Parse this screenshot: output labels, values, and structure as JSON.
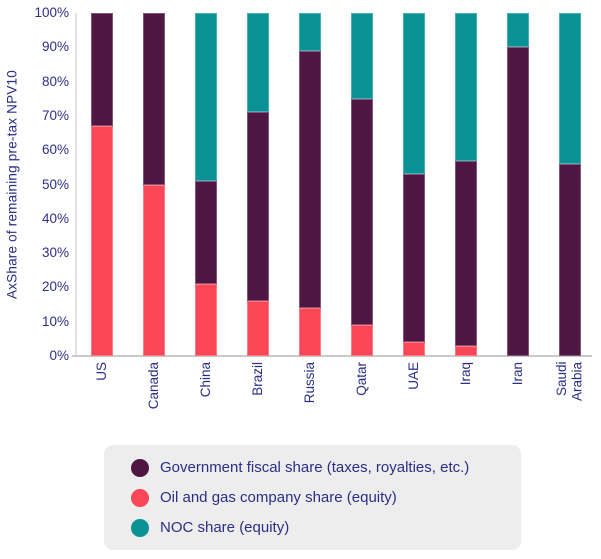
{
  "colors": {
    "government": "#4F1543",
    "company": "#FA4656",
    "noc": "#0A9196",
    "axis_text": "#2B2E87",
    "legend_bg": "#EDEDED",
    "x_axis_line": "#C9C9C9",
    "y_axis_line": "#E2E2E2"
  },
  "chart_data": {
    "type": "bar",
    "stacked": true,
    "title": "",
    "xlabel": "",
    "ylabel": "AxShare of remaining pre-tax NPV10",
    "ylim": [
      0,
      100
    ],
    "grid": false,
    "legend_position": "bottom",
    "yticks": [
      "0%",
      "10%",
      "20%",
      "30%",
      "40%",
      "50%",
      "60%",
      "70%",
      "80%",
      "90%",
      "100%"
    ],
    "categories": [
      "US",
      "Canada",
      "China",
      "Brazil",
      "Russia",
      "Qatar",
      "UAE",
      "Iraq",
      "Iran",
      "Saudi\nArabia"
    ],
    "series": [
      {
        "name": "Oil and gas company share (equity)",
        "color_key": "company",
        "values": [
          67,
          50,
          21,
          16,
          14,
          9,
          4,
          3,
          0,
          0
        ]
      },
      {
        "name": "Government fiscal share (taxes, royalties, etc.)",
        "color_key": "government",
        "values": [
          33,
          50,
          30,
          55,
          75,
          66,
          49,
          54,
          90,
          56
        ]
      },
      {
        "name": "NOC share (equity)",
        "color_key": "noc",
        "values": [
          0,
          0,
          49,
          29,
          11,
          25,
          47,
          43,
          10,
          44
        ]
      }
    ]
  },
  "legend": {
    "items": [
      {
        "label": "Government fiscal share (taxes, royalties, etc.)",
        "color_key": "government"
      },
      {
        "label": "Oil and gas company share (equity)",
        "color_key": "company"
      },
      {
        "label": "NOC share (equity)",
        "color_key": "noc"
      }
    ]
  }
}
